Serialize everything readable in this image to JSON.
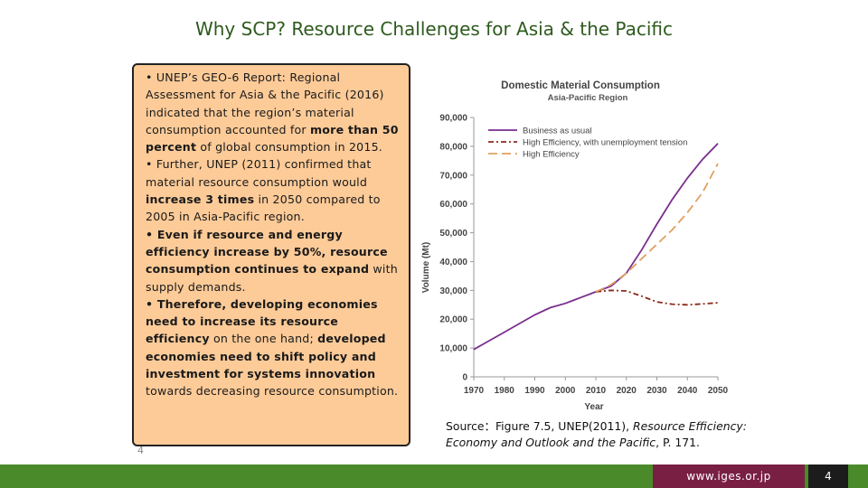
{
  "title": "Why SCP? Resource Challenges for Asia & the Pacific",
  "bullets": [
    [
      {
        "t": "• UNEP’s GEO-6 Report: Regional Assessment for Asia & the Pacific (2016) indicated that the region’s material consumption accounted for ",
        "b": false
      },
      {
        "t": "more than 50 percent",
        "b": true
      },
      {
        "t": " of global consumption in 2015.",
        "b": false
      }
    ],
    [
      {
        "t": "• Further, UNEP (2011) confirmed that material resource consumption would ",
        "b": false
      },
      {
        "t": "increase 3 times",
        "b": true
      },
      {
        "t": " in 2050 compared to 2005 in Asia-Pacific region.",
        "b": false
      }
    ],
    [
      {
        "t": "• Even if resource and energy efficiency increase by 50%, resource consumption continues to expand",
        "b": true
      },
      {
        "t": " with supply demands.",
        "b": false
      }
    ],
    [
      {
        "t": "• Therefore, developing economies need to increase its resource efficiency",
        "b": true
      },
      {
        "t": " on the one hand; ",
        "b": false
      },
      {
        "t": "developed economies need to shift policy and investment for systems innovation",
        "b": true
      },
      {
        "t": " towards decreasing resource consumption.",
        "b": false
      }
    ]
  ],
  "page_mark": "4",
  "source": {
    "prefix": "Source：Figure 7.5, UNEP(2011), ",
    "italic": "Resource Efficiency: Economy and Outlook and the Pacific",
    "suffix": ", P. 171."
  },
  "footer": {
    "url": "www.iges.or.jp",
    "page": "4",
    "green": "#4a8a2a",
    "maroon": "#7a1f44"
  },
  "chart_data": {
    "type": "line",
    "title": "Domestic Material Consumption",
    "subtitle": "Asia-Pacific Region",
    "xlabel": "Year",
    "ylabel": "Volume (Mt)",
    "xlim": [
      1970,
      2050
    ],
    "ylim": [
      0,
      90000
    ],
    "xticks": [
      1970,
      1980,
      1990,
      2000,
      2010,
      2020,
      2030,
      2040,
      2050
    ],
    "yticks": [
      0,
      10000,
      20000,
      30000,
      40000,
      50000,
      60000,
      70000,
      80000,
      90000
    ],
    "ytick_labels": [
      "0",
      "10,000",
      "20,000",
      "30,000",
      "40,000",
      "50,000",
      "60,000",
      "70,000",
      "80,000",
      "90,000"
    ],
    "grid": false,
    "legend": "top-left",
    "series": [
      {
        "name": "Business as usual",
        "color": "#7b2d8e",
        "dash": "solid",
        "x": [
          1970,
          1975,
          1980,
          1985,
          1990,
          1995,
          2000,
          2005,
          2010,
          2015,
          2020,
          2025,
          2030,
          2035,
          2040,
          2045,
          2050
        ],
        "y": [
          9500,
          12500,
          15500,
          18500,
          21500,
          24000,
          25500,
          27500,
          29500,
          31500,
          36000,
          44000,
          53000,
          61500,
          69000,
          75500,
          81000
        ]
      },
      {
        "name": "High Efficiency, with unemployment tension",
        "color": "#8b2b1c",
        "dash": "dashdot",
        "x": [
          2010,
          2015,
          2020,
          2025,
          2030,
          2035,
          2040,
          2045,
          2050
        ],
        "y": [
          29500,
          30000,
          29800,
          28000,
          26000,
          25200,
          25000,
          25300,
          25700
        ]
      },
      {
        "name": "High Efficiency",
        "color": "#e0a060",
        "dash": "dashed",
        "x": [
          2010,
          2015,
          2020,
          2025,
          2030,
          2035,
          2040,
          2045,
          2050
        ],
        "y": [
          29500,
          32000,
          36000,
          41000,
          46000,
          51000,
          57000,
          64000,
          74000
        ]
      }
    ]
  }
}
